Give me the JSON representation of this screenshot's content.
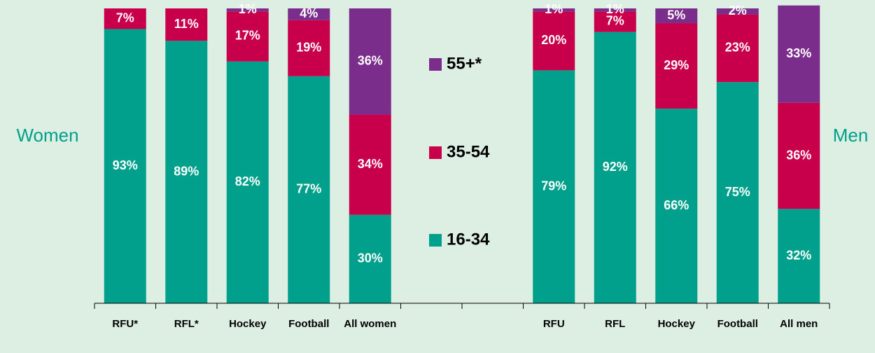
{
  "chart_data": {
    "type": "stacked_bar",
    "categories": [
      "RFU*",
      "RFL*",
      "Hockey",
      "Football",
      "All women",
      null,
      null,
      "RFU",
      "RFL",
      "Hockey",
      "Football",
      "All men"
    ],
    "ylim": [
      0,
      100
    ],
    "group_labels": [
      "Women",
      "Men"
    ],
    "series": [
      {
        "name": "16-34",
        "color": "#00a08c",
        "values": [
          93,
          89,
          82,
          77,
          30,
          null,
          null,
          79,
          92,
          66,
          75,
          32
        ],
        "value_labels": [
          "93%",
          "89%",
          "82%",
          "77%",
          "30%",
          null,
          null,
          "79%",
          "92%",
          "66%",
          "75%",
          "32%"
        ]
      },
      {
        "name": "35-54",
        "color": "#c8004b",
        "values": [
          7,
          11,
          17,
          19,
          34,
          null,
          null,
          20,
          7,
          29,
          23,
          36
        ],
        "value_labels": [
          "7%",
          "11%",
          "17%",
          "19%",
          "34%",
          null,
          null,
          "20%",
          "7%",
          "29%",
          "23%",
          "36%"
        ]
      },
      {
        "name": "55+*",
        "color": "#7b2d8b",
        "values": [
          null,
          null,
          1,
          4,
          36,
          null,
          null,
          1,
          1,
          5,
          2,
          33
        ],
        "value_labels": [
          null,
          null,
          "1%",
          "4%",
          "36%",
          null,
          null,
          "1%",
          "1%",
          "5%",
          "2%",
          "33%"
        ]
      }
    ]
  }
}
